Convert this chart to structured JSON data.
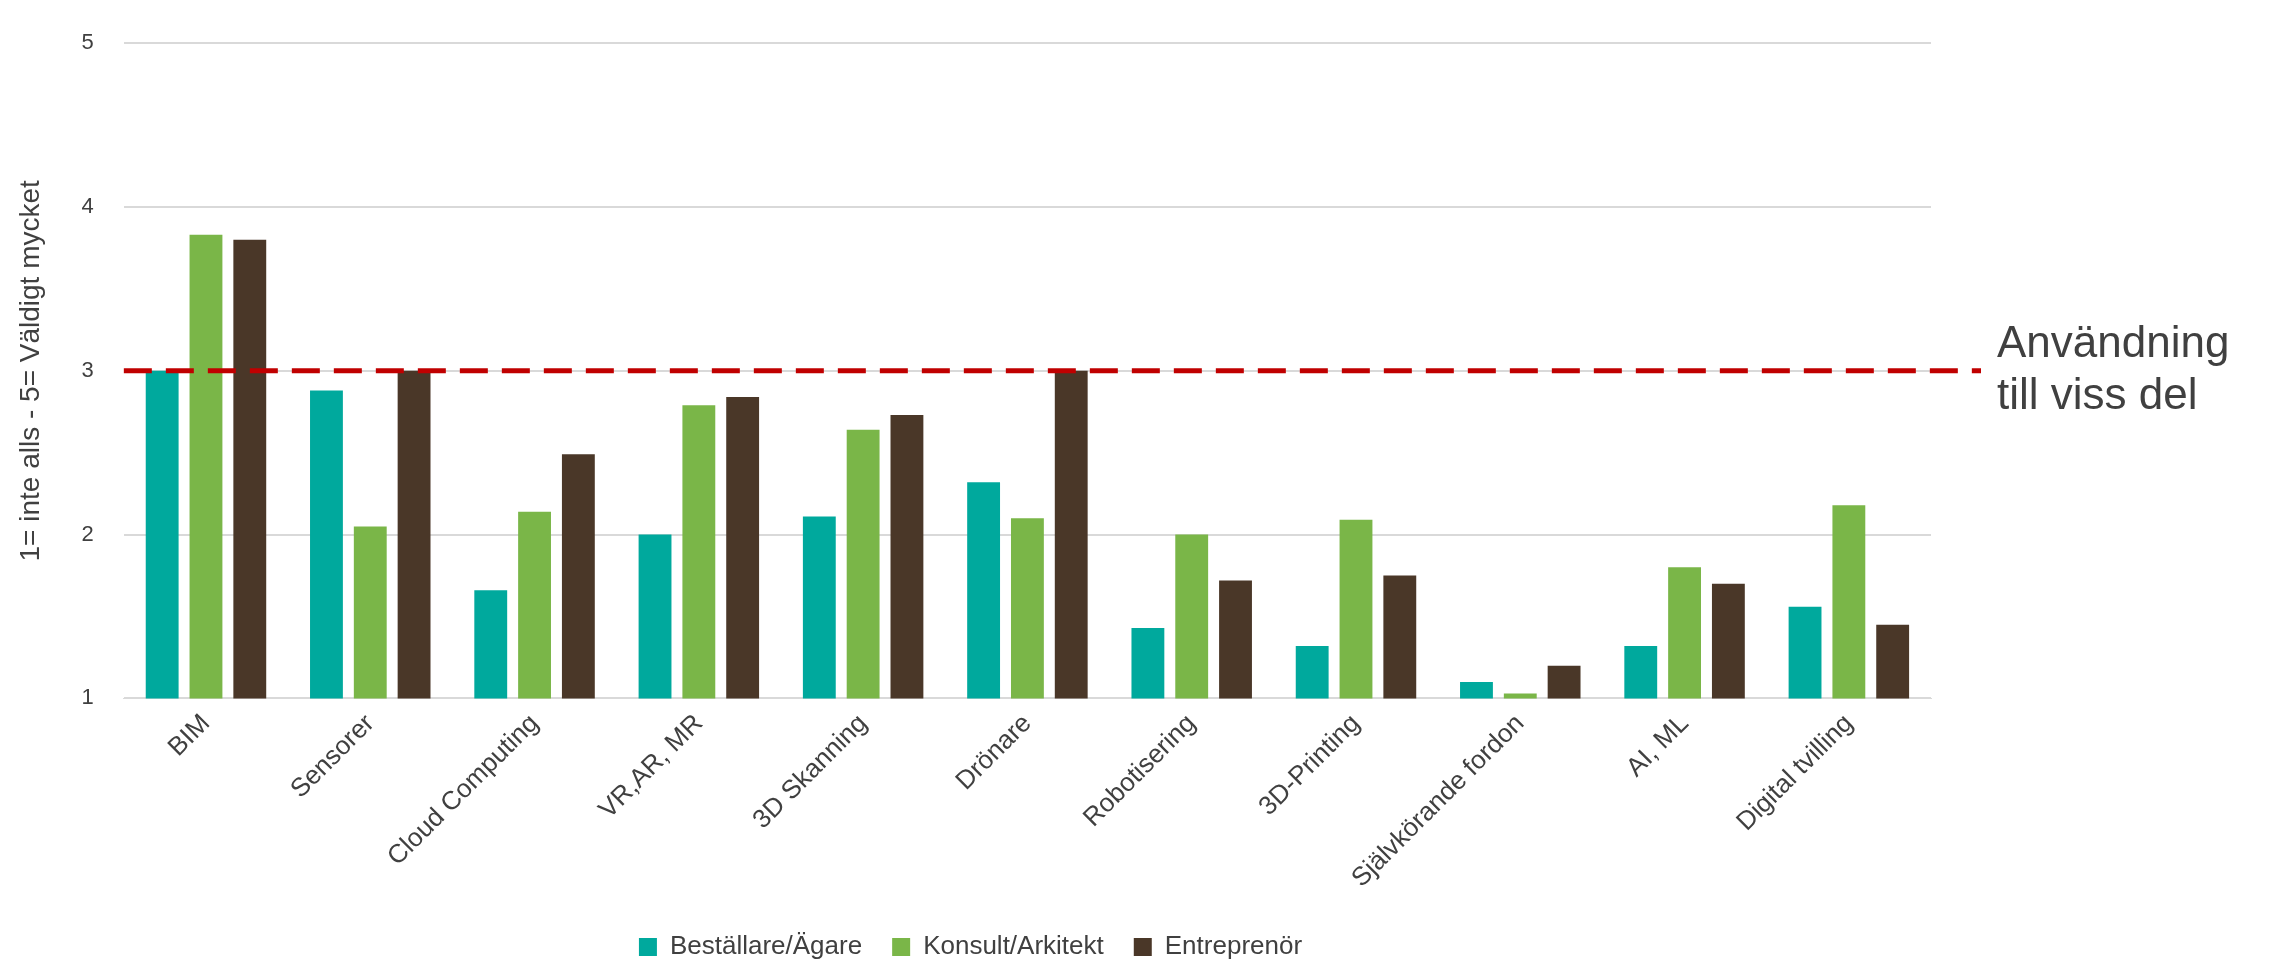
{
  "chart_data": {
    "type": "bar",
    "ylabel": "1= inte alls - 5= Väldigt mycket",
    "categories": [
      "BIM",
      "Sensorer",
      "Cloud Computing",
      "VR,AR, MR",
      "3D Skanning",
      "Drönare",
      "Robotisering",
      "3D-Printing",
      "Självkörande fordon",
      "AI, ML",
      "Digital tvilling"
    ],
    "series": [
      {
        "name": "Beställare/Ägare",
        "color": "#00a99d",
        "values": [
          3.0,
          2.88,
          1.66,
          2.0,
          2.11,
          2.32,
          1.43,
          1.32,
          1.1,
          1.32,
          1.56
        ]
      },
      {
        "name": "Konsult/Arkitekt",
        "color": "#7ab648",
        "values": [
          3.83,
          2.05,
          2.14,
          2.79,
          2.64,
          2.1,
          2.0,
          2.09,
          1.03,
          1.8,
          2.18
        ]
      },
      {
        "name": "Entreprenör",
        "color": "#4a3728",
        "values": [
          3.8,
          3.0,
          2.49,
          2.84,
          2.73,
          3.0,
          1.72,
          1.75,
          1.2,
          1.7,
          1.45
        ]
      }
    ],
    "ylim": [
      1,
      5
    ],
    "yticks": [
      1,
      2,
      3,
      4,
      5
    ],
    "grid": "y",
    "legend": "bottom",
    "ref_lines": [
      {
        "axis": "y",
        "value": 3,
        "label": "Användning till viss del",
        "color": "#c00000",
        "line_style": "dashed"
      }
    ]
  }
}
